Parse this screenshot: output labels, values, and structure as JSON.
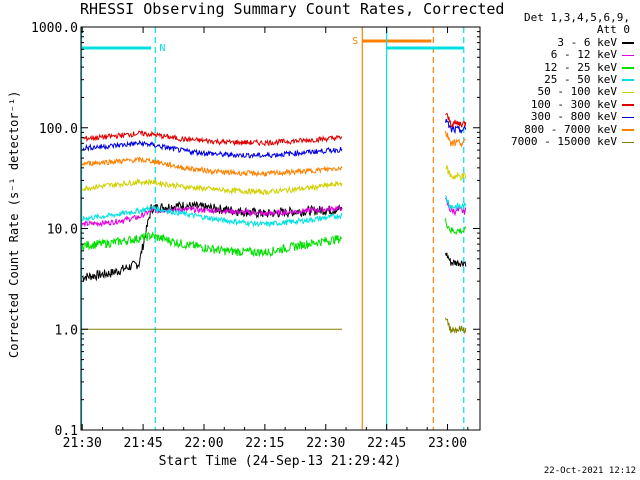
{
  "chart_data": {
    "type": "line",
    "title": "RHESSI Observing Summary Count Rates, Corrected",
    "xlabel": "Start Time (24-Sep-13 21:29:42)",
    "ylabel": "Corrected Count Rate (s⁻¹ detector⁻¹)",
    "yscale": "log",
    "ylim": [
      0.1,
      1000.0
    ],
    "xlim": [
      "21:29:42",
      "23:08:00"
    ],
    "x_tick_labels": [
      "21:30",
      "21:45",
      "22:00",
      "22:15",
      "22:30",
      "22:45",
      "23:00"
    ],
    "y_tick_labels": [
      "0.1",
      "1.0",
      "10.0",
      "100.0",
      "1000.0"
    ],
    "y_ticks": [
      0.1,
      1.0,
      10.0,
      100.0,
      1000.0
    ],
    "grid": false,
    "legend_header": [
      "Det 1,3,4,5,6,9,",
      "Att 0"
    ],
    "legend_position": "right",
    "series": [
      {
        "name": "3 - 6 keV",
        "color": "#000000",
        "x": [
          "21:30",
          "21:37",
          "21:44",
          "21:47",
          "21:55",
          "22:05",
          "22:15",
          "22:25",
          "22:34",
          "22:50",
          "23:03"
        ],
        "y": [
          3.3,
          3.6,
          4.5,
          16.0,
          17.0,
          15.5,
          14.0,
          15.0,
          15.5,
          null,
          4.6
        ]
      },
      {
        "name": "6 - 12 keV",
        "color": "#e000e0",
        "x": [
          "21:30",
          "21:37",
          "21:44",
          "21:47",
          "21:55",
          "22:05",
          "22:15",
          "22:25",
          "22:34",
          "22:50",
          "23:03"
        ],
        "y": [
          11.0,
          11.5,
          13.0,
          15.0,
          15.5,
          15.0,
          14.0,
          15.0,
          16.0,
          null,
          15.0
        ]
      },
      {
        "name": "12 - 25 keV",
        "color": "#00e000",
        "x": [
          "21:30",
          "21:37",
          "21:44",
          "21:47",
          "21:55",
          "22:05",
          "22:15",
          "22:25",
          "22:34",
          "22:50",
          "23:03"
        ],
        "y": [
          6.8,
          7.2,
          8.0,
          8.5,
          7.0,
          6.0,
          5.8,
          7.0,
          8.0,
          null,
          9.5
        ]
      },
      {
        "name": "25 - 50 keV",
        "color": "#00e0e0",
        "x": [
          "21:30",
          "21:37",
          "21:44",
          "21:47",
          "21:55",
          "22:05",
          "22:15",
          "22:25",
          "22:34",
          "22:50",
          "23:03"
        ],
        "y": [
          12.5,
          13.5,
          15.0,
          16.0,
          14.0,
          12.0,
          11.0,
          12.0,
          13.5,
          null,
          16.5
        ]
      },
      {
        "name": "50 - 100 keV",
        "color": "#d0d000",
        "x": [
          "21:30",
          "21:37",
          "21:44",
          "21:47",
          "21:55",
          "22:05",
          "22:15",
          "22:25",
          "22:34",
          "22:50",
          "23:03"
        ],
        "y": [
          25.0,
          27.0,
          29.0,
          29.0,
          26.0,
          24.0,
          23.0,
          25.0,
          28.0,
          null,
          33.0
        ]
      },
      {
        "name": "100 - 300 keV",
        "color": "#e00000",
        "x": [
          "21:30",
          "21:37",
          "21:44",
          "21:47",
          "21:55",
          "22:05",
          "22:15",
          "22:25",
          "22:34",
          "22:50",
          "23:03"
        ],
        "y": [
          78.0,
          82.0,
          88.0,
          86.0,
          77.0,
          72.0,
          71.0,
          75.0,
          80.0,
          null,
          110.0
        ]
      },
      {
        "name": "300 - 800 keV",
        "color": "#0000e0",
        "x": [
          "21:30",
          "21:37",
          "21:44",
          "21:47",
          "21:55",
          "22:05",
          "22:15",
          "22:25",
          "22:34",
          "22:50",
          "23:03"
        ],
        "y": [
          63.0,
          66.0,
          70.0,
          68.0,
          59.0,
          54.0,
          53.0,
          57.0,
          61.0,
          null,
          95.0
        ]
      },
      {
        "name": "800 - 7000 keV",
        "color": "#ff8000",
        "x": [
          "21:30",
          "21:37",
          "21:44",
          "21:47",
          "21:55",
          "22:05",
          "22:15",
          "22:25",
          "22:34",
          "22:50",
          "23:03"
        ],
        "y": [
          44.0,
          46.0,
          48.0,
          47.0,
          40.0,
          36.0,
          35.0,
          37.0,
          40.0,
          null,
          72.0
        ]
      },
      {
        "name": "7000 - 15000 keV",
        "color": "#808000",
        "x": [
          "21:30",
          "21:37",
          "21:44",
          "21:47",
          "21:55",
          "22:05",
          "22:15",
          "22:25",
          "22:34",
          "22:50",
          "23:03"
        ],
        "y": [
          1.0,
          1.0,
          1.0,
          1.0,
          1.0,
          1.0,
          1.0,
          1.0,
          1.0,
          null,
          1.0
        ]
      }
    ],
    "annotations": [
      {
        "text": "N",
        "color": "#00e0e0"
      },
      {
        "text": "S",
        "color": "#ff8000"
      }
    ]
  },
  "timestamp": "22-Oct-2021 12:12"
}
